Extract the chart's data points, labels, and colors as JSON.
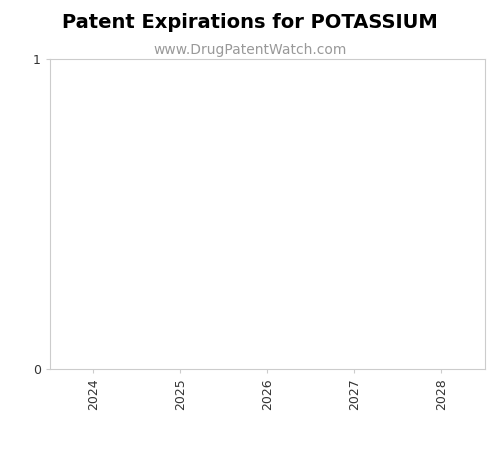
{
  "title": "Patent Expirations for POTASSIUM",
  "subtitle": "www.DrugPatentWatch.com",
  "title_fontsize": 14,
  "subtitle_fontsize": 10,
  "title_fontweight": "bold",
  "subtitle_color": "#999999",
  "xlim": [
    2023.5,
    2028.5
  ],
  "ylim": [
    0,
    1
  ],
  "xticks": [
    2024,
    2025,
    2026,
    2027,
    2028
  ],
  "yticks": [
    0,
    1
  ],
  "background_color": "#ffffff",
  "tick_label_rotation": 90,
  "tick_fontsize": 9,
  "spine_color": "#cccccc"
}
